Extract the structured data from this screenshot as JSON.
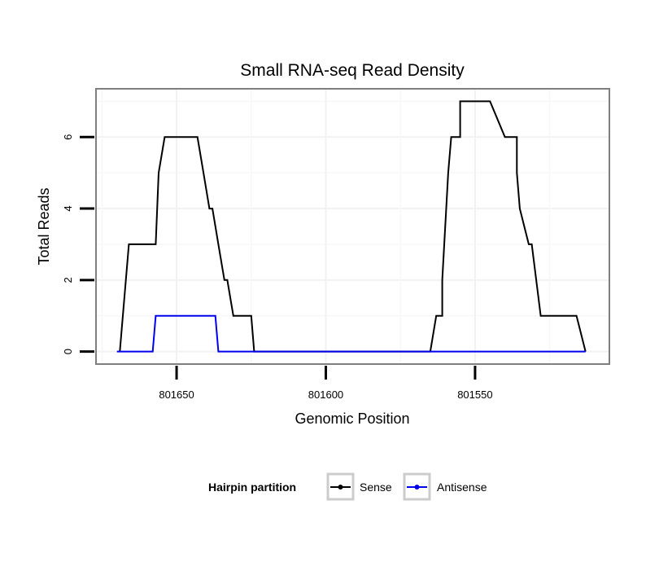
{
  "chart_data": {
    "type": "line",
    "title": "Small RNA-seq Read Density",
    "xlabel": "Genomic Position",
    "ylabel": "Total Reads",
    "x_reversed": true,
    "xlim": [
      801677,
      801505
    ],
    "ylim": [
      -0.35,
      7.35
    ],
    "x_ticks": [
      801650,
      801600,
      801550
    ],
    "x_tick_labels": [
      "801650",
      "801600",
      "801550"
    ],
    "y_ticks": [
      0,
      2,
      4,
      6
    ],
    "y_tick_labels": [
      "0",
      "2",
      "4",
      "6"
    ],
    "grid": true,
    "legend": {
      "title": "Hairpin partition",
      "position": "bottom"
    },
    "series": [
      {
        "name": "Sense",
        "color": "#000000",
        "x": [
          801669,
          801666,
          801661,
          801657,
          801656,
          801654,
          801643,
          801641,
          801639,
          801638,
          801636,
          801636,
          801634,
          801633,
          801631,
          801625,
          801624,
          801595,
          801565,
          801563,
          801561,
          801561,
          801559,
          801558,
          801555,
          801555,
          801545,
          801540,
          801540,
          801536,
          801536,
          801535,
          801532,
          801531,
          801528,
          801516,
          801513
        ],
        "y": [
          0,
          3,
          3,
          3,
          5,
          6,
          6,
          5,
          4,
          4,
          3,
          3,
          2,
          2,
          1,
          1,
          0,
          0,
          0,
          1,
          1,
          2,
          5,
          6,
          6,
          7,
          7,
          6,
          6,
          6,
          5,
          4,
          3,
          3,
          1,
          1,
          0
        ]
      },
      {
        "name": "Antisense",
        "color": "#0000ee",
        "x": [
          801670,
          801658,
          801657,
          801637,
          801636,
          801624,
          801595,
          801565,
          801513
        ],
        "y": [
          0,
          0,
          1,
          1,
          0,
          0,
          0,
          0,
          0
        ]
      }
    ]
  }
}
